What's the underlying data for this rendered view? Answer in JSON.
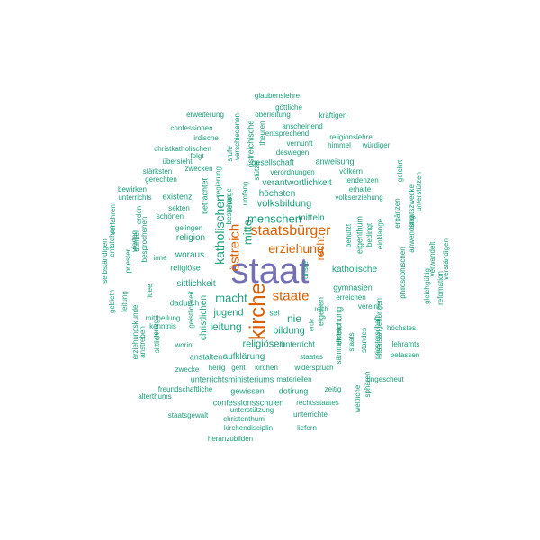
{
  "palette": {
    "teal": "#1b9e77",
    "orange": "#d95f02",
    "purple": "#7570b3"
  },
  "words": [
    {
      "text": "staat",
      "color": "purple"
    },
    {
      "text": "kirche",
      "color": "orange"
    },
    {
      "text": "staatsbürger",
      "color": "orange"
    },
    {
      "text": "staate",
      "color": "orange"
    },
    {
      "text": "erziehung",
      "color": "orange"
    },
    {
      "text": "östreich",
      "color": "orange"
    },
    {
      "text": "recht",
      "color": "orange"
    },
    {
      "text": "katholischen",
      "color": "teal"
    },
    {
      "text": "mitte",
      "color": "teal"
    },
    {
      "text": "menschen",
      "color": "teal"
    },
    {
      "text": "mitteln",
      "color": "teal"
    },
    {
      "text": "volksbildung",
      "color": "teal"
    },
    {
      "text": "höchsten",
      "color": "teal"
    },
    {
      "text": "verantwortlichkeit",
      "color": "teal"
    },
    {
      "text": "macht",
      "color": "teal"
    },
    {
      "text": "jugend",
      "color": "teal"
    },
    {
      "text": "leitung",
      "color": "teal"
    },
    {
      "text": "nie",
      "color": "teal"
    },
    {
      "text": "bildung",
      "color": "teal"
    },
    {
      "text": "religiösen",
      "color": "teal"
    },
    {
      "text": "unterricht",
      "color": "teal"
    },
    {
      "text": "katholische",
      "color": "teal"
    },
    {
      "text": "gymnasien",
      "color": "teal"
    },
    {
      "text": "eigenen",
      "color": "teal"
    },
    {
      "text": "erreichung",
      "color": "teal"
    },
    {
      "text": "sittlichkeit",
      "color": "teal"
    },
    {
      "text": "religion",
      "color": "teal"
    },
    {
      "text": "woraus",
      "color": "teal"
    },
    {
      "text": "religiöse",
      "color": "teal"
    },
    {
      "text": "dadurch",
      "color": "teal"
    },
    {
      "text": "aufklärung",
      "color": "teal"
    },
    {
      "text": "staates",
      "color": "teal"
    },
    {
      "text": "gesellschaft",
      "color": "teal"
    },
    {
      "text": "anweisung",
      "color": "teal"
    },
    {
      "text": "glaubenslehre",
      "color": "teal"
    },
    {
      "text": "göttliche",
      "color": "teal"
    },
    {
      "text": "erweiterung",
      "color": "teal"
    },
    {
      "text": "oberleitung",
      "color": "teal"
    },
    {
      "text": "kräftigen",
      "color": "teal"
    },
    {
      "text": "confessionen",
      "color": "teal"
    },
    {
      "text": "anscheinend",
      "color": "teal"
    },
    {
      "text": "entsprechend",
      "color": "teal"
    },
    {
      "text": "religionslehre",
      "color": "teal"
    },
    {
      "text": "irdische",
      "color": "teal"
    },
    {
      "text": "vernunft",
      "color": "teal"
    },
    {
      "text": "himmel",
      "color": "teal"
    },
    {
      "text": "würdiger",
      "color": "teal"
    },
    {
      "text": "christkatholischen",
      "color": "teal"
    },
    {
      "text": "deswegen",
      "color": "teal"
    },
    {
      "text": "folgt",
      "color": "teal"
    },
    {
      "text": "übersieht",
      "color": "teal"
    },
    {
      "text": "zwecken",
      "color": "teal"
    },
    {
      "text": "stärksten",
      "color": "teal"
    },
    {
      "text": "gerechten",
      "color": "teal"
    },
    {
      "text": "verordnungen",
      "color": "teal"
    },
    {
      "text": "völkern",
      "color": "teal"
    },
    {
      "text": "tendenzen",
      "color": "teal"
    },
    {
      "text": "erhalte",
      "color": "teal"
    },
    {
      "text": "volkserziehung",
      "color": "teal"
    },
    {
      "text": "bewirken",
      "color": "teal"
    },
    {
      "text": "unterrichts",
      "color": "teal"
    },
    {
      "text": "existenz",
      "color": "teal"
    },
    {
      "text": "sekten",
      "color": "teal"
    },
    {
      "text": "schönen",
      "color": "teal"
    },
    {
      "text": "gelingen",
      "color": "teal"
    },
    {
      "text": "inne",
      "color": "teal"
    },
    {
      "text": "mittheilung",
      "color": "teal"
    },
    {
      "text": "kenntnis",
      "color": "teal"
    },
    {
      "text": "worin",
      "color": "teal"
    },
    {
      "text": "anstalten",
      "color": "teal"
    },
    {
      "text": "zwecke",
      "color": "teal"
    },
    {
      "text": "heilig",
      "color": "teal"
    },
    {
      "text": "geht",
      "color": "teal"
    },
    {
      "text": "kirchen",
      "color": "teal"
    },
    {
      "text": "widerspruch",
      "color": "teal"
    },
    {
      "text": "unterrichtsministeriums",
      "color": "teal"
    },
    {
      "text": "materiellen",
      "color": "teal"
    },
    {
      "text": "freundschaftliche",
      "color": "teal"
    },
    {
      "text": "gewissen",
      "color": "teal"
    },
    {
      "text": "dotirung",
      "color": "teal"
    },
    {
      "text": "zeitig",
      "color": "teal"
    },
    {
      "text": "alterthums",
      "color": "teal"
    },
    {
      "text": "confessionsschulen",
      "color": "teal"
    },
    {
      "text": "rechtsstaates",
      "color": "teal"
    },
    {
      "text": "unterstützung",
      "color": "teal"
    },
    {
      "text": "staatsgewalt",
      "color": "teal"
    },
    {
      "text": "unterrichte",
      "color": "teal"
    },
    {
      "text": "christenthum",
      "color": "teal"
    },
    {
      "text": "kirchendisciplin",
      "color": "teal"
    },
    {
      "text": "liefern",
      "color": "teal"
    },
    {
      "text": "heranzubilden",
      "color": "teal"
    },
    {
      "text": "sei",
      "color": "teal"
    },
    {
      "text": "reich",
      "color": "teal"
    },
    {
      "text": "erreichen",
      "color": "teal"
    },
    {
      "text": "vereint",
      "color": "teal"
    },
    {
      "text": "höchstes",
      "color": "teal"
    },
    {
      "text": "lehramts",
      "color": "teal"
    },
    {
      "text": "befassen",
      "color": "teal"
    },
    {
      "text": "ungescheut",
      "color": "teal"
    },
    {
      "text": "staatsangehörigen",
      "color": "teal"
    },
    {
      "text": "philosophischen",
      "color": "teal"
    },
    {
      "text": "einklange",
      "color": "teal"
    },
    {
      "text": "bedingt",
      "color": "teal"
    },
    {
      "text": "eigenthum",
      "color": "teal"
    },
    {
      "text": "benützt",
      "color": "teal"
    },
    {
      "text": "ergänzen",
      "color": "teal"
    },
    {
      "text": "gelehrt",
      "color": "teal"
    },
    {
      "text": "anwendung",
      "color": "teal"
    },
    {
      "text": "staatszwecke",
      "color": "teal"
    },
    {
      "text": "unterstützen",
      "color": "teal"
    },
    {
      "text": "gleichgültig",
      "color": "teal"
    },
    {
      "text": "verwandelt",
      "color": "teal"
    },
    {
      "text": "refomation",
      "color": "teal"
    },
    {
      "text": "verständigen",
      "color": "teal"
    },
    {
      "text": "priesterschaft",
      "color": "teal"
    },
    {
      "text": "standes",
      "color": "teal"
    },
    {
      "text": "staats",
      "color": "teal"
    },
    {
      "text": "sämmtlichen",
      "color": "teal"
    },
    {
      "text": "sphären",
      "color": "teal"
    },
    {
      "text": "weltliche",
      "color": "teal"
    },
    {
      "text": "unsre",
      "color": "teal"
    },
    {
      "text": "erde",
      "color": "teal"
    },
    {
      "text": "christlichen",
      "color": "teal"
    },
    {
      "text": "geistlichkeit",
      "color": "teal"
    },
    {
      "text": "sittlich",
      "color": "teal"
    },
    {
      "text": "genug",
      "color": "teal"
    },
    {
      "text": "idee",
      "color": "teal"
    },
    {
      "text": "besprochenen",
      "color": "teal"
    },
    {
      "text": "vierten",
      "color": "teal"
    },
    {
      "text": "erden",
      "color": "teal"
    },
    {
      "text": "dunkel",
      "color": "teal"
    },
    {
      "text": "leitung",
      "color": "teal"
    },
    {
      "text": "priester",
      "color": "teal"
    },
    {
      "text": "verfahren",
      "color": "teal"
    },
    {
      "text": "entstehen",
      "color": "teal"
    },
    {
      "text": "selbständigen",
      "color": "teal"
    },
    {
      "text": "gebieth",
      "color": "teal"
    },
    {
      "text": "erziehungskunde",
      "color": "teal"
    },
    {
      "text": "anstreben",
      "color": "teal"
    },
    {
      "text": "betrachtet",
      "color": "teal"
    },
    {
      "text": "regierung",
      "color": "teal"
    },
    {
      "text": "auge",
      "color": "teal"
    },
    {
      "text": "stufe",
      "color": "teal"
    },
    {
      "text": "verschiedenen",
      "color": "teal"
    },
    {
      "text": "östreichische",
      "color": "teal"
    },
    {
      "text": "theuren",
      "color": "teal"
    },
    {
      "text": "stütze",
      "color": "teal"
    },
    {
      "text": "deus",
      "color": "teal"
    },
    {
      "text": "umfang",
      "color": "teal"
    },
    {
      "text": "bestehen",
      "color": "teal"
    },
    {
      "text": "umbei",
      "color": "teal"
    }
  ]
}
